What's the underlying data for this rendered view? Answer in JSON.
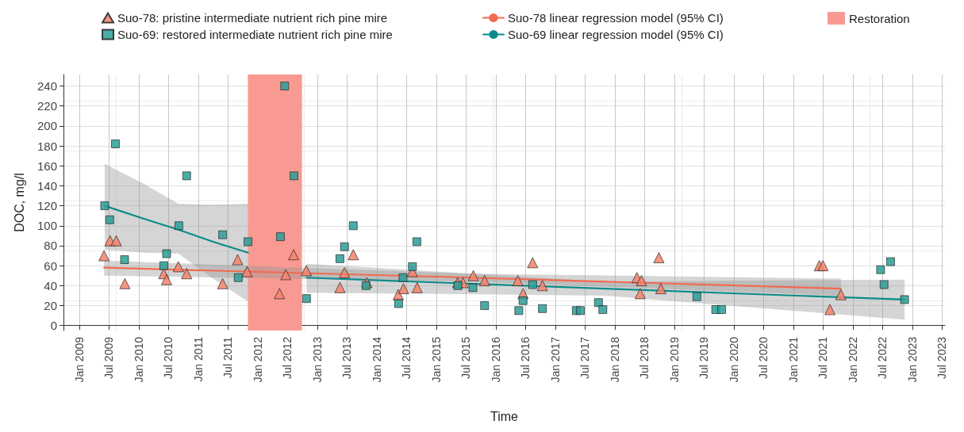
{
  "chart_data": {
    "type": "scatter",
    "xlabel": "Time",
    "ylabel": "DOC, mg/l",
    "xlim": [
      "2008-09-25",
      "2023-07-20"
    ],
    "ylim": [
      -5,
      251.5
    ],
    "yticks": [
      0,
      20,
      40,
      60,
      80,
      100,
      120,
      140,
      160,
      180,
      200,
      220,
      240
    ],
    "xticks": [
      {
        "value": "2009-01",
        "label": "Jan 2009"
      },
      {
        "value": "2009-07",
        "label": "Jul 2009"
      },
      {
        "value": "2010-01",
        "label": "Jan 2010"
      },
      {
        "value": "2010-07",
        "label": "Jul 2010"
      },
      {
        "value": "2011-01",
        "label": "Jan 2011"
      },
      {
        "value": "2011-07",
        "label": "Jul 2011"
      },
      {
        "value": "2012-01",
        "label": "Jan 2012"
      },
      {
        "value": "2012-07",
        "label": "Jul 2012"
      },
      {
        "value": "2013-01",
        "label": "Jan 2013"
      },
      {
        "value": "2013-07",
        "label": "Jul 2013"
      },
      {
        "value": "2014-01",
        "label": "Jan 2014"
      },
      {
        "value": "2014-07",
        "label": "Jul 2014"
      },
      {
        "value": "2015-01",
        "label": "Jan 2015"
      },
      {
        "value": "2015-07",
        "label": "Jul 2015"
      },
      {
        "value": "2016-01",
        "label": "Jan 2016"
      },
      {
        "value": "2016-07",
        "label": "Jul 2016"
      },
      {
        "value": "2017-01",
        "label": "Jan 2017"
      },
      {
        "value": "2017-07",
        "label": "Jul 2017"
      },
      {
        "value": "2018-01",
        "label": "Jan 2018"
      },
      {
        "value": "2018-07",
        "label": "Jul 2018"
      },
      {
        "value": "2019-01",
        "label": "Jan 2019"
      },
      {
        "value": "2019-07",
        "label": "Jul 2019"
      },
      {
        "value": "2020-01",
        "label": "Jan 2020"
      },
      {
        "value": "2020-07",
        "label": "Jul 2020"
      },
      {
        "value": "2021-01",
        "label": "Jan 2021"
      },
      {
        "value": "2021-07",
        "label": "Jul 2021"
      },
      {
        "value": "2022-01",
        "label": "Jan 2022"
      },
      {
        "value": "2022-07",
        "label": "Jul 2022"
      },
      {
        "value": "2023-01",
        "label": "Jan 2023"
      },
      {
        "value": "2023-07",
        "label": "Jul 2023"
      }
    ],
    "grid": true,
    "legend": "top",
    "bands": [
      {
        "axis": "x",
        "from": "2011-11-01",
        "to": "2012-09-28",
        "label": "Restoration",
        "color": "#f99a92"
      }
    ],
    "series": [
      {
        "name": "Suo-78: pristine intermediate nutrient rich pine mire",
        "marker": "triangle",
        "color": "#f4836b",
        "x": [
          "2009-06-01",
          "2009-07-08",
          "2009-08-15",
          "2009-10-07",
          "2010-06-03",
          "2010-06-20",
          "2010-08-31",
          "2010-10-21",
          "2011-05-30",
          "2011-08-30",
          "2011-10-27",
          "2012-05-13",
          "2012-06-21",
          "2012-08-08",
          "2012-10-25",
          "2013-05-19",
          "2013-06-16",
          "2013-08-09",
          "2013-11-01",
          "2014-05-12",
          "2014-06-13",
          "2014-08-07",
          "2014-09-05",
          "2015-05-12",
          "2015-06-13",
          "2015-08-16",
          "2015-10-24",
          "2016-05-15",
          "2016-06-16",
          "2016-08-14",
          "2016-10-13",
          "2018-05-16",
          "2018-06-05",
          "2018-06-13",
          "2018-09-28",
          "2018-10-10",
          "2021-06-09",
          "2021-07-01",
          "2021-08-13",
          "2021-10-19"
        ],
        "values": [
          70,
          85,
          85,
          42,
          52,
          46,
          59,
          52,
          42,
          66,
          54,
          32,
          51,
          71,
          55,
          38,
          53,
          71,
          43,
          31,
          37,
          54,
          38,
          43,
          43,
          50,
          45,
          45,
          32,
          63,
          40,
          48,
          32,
          45,
          68,
          37,
          60,
          60,
          16,
          31
        ]
      },
      {
        "name": "Suo-69: restored intermediate nutrient rich pine mire",
        "marker": "square",
        "color": "#2a9d98",
        "x": [
          "2009-06-05",
          "2009-07-06",
          "2009-08-10",
          "2009-10-05",
          "2010-06-03",
          "2010-06-20",
          "2010-09-03",
          "2010-10-21",
          "2011-05-30",
          "2011-09-03",
          "2011-11-02",
          "2012-05-19",
          "2012-06-14",
          "2012-08-10",
          "2012-10-26",
          "2013-05-19",
          "2013-06-16",
          "2013-08-09",
          "2013-10-26",
          "2014-05-14",
          "2014-06-10",
          "2014-08-07",
          "2014-09-03",
          "2015-05-13",
          "2015-08-13",
          "2015-10-24",
          "2016-05-21",
          "2016-06-16",
          "2016-08-14",
          "2016-10-13",
          "2017-05-09",
          "2017-06-03",
          "2017-09-22",
          "2017-10-19",
          "2019-05-19",
          "2019-09-12",
          "2019-10-18",
          "2022-06-20",
          "2022-07-11",
          "2022-08-20",
          "2022-11-14"
        ],
        "values": [
          120,
          106,
          182,
          66,
          60,
          72,
          100,
          150,
          91,
          48,
          84,
          89,
          240,
          150,
          27,
          67,
          79,
          100,
          40,
          22,
          48,
          59,
          84,
          40,
          38,
          20,
          15,
          25,
          41,
          17,
          15,
          15,
          23,
          16,
          29,
          16,
          16,
          56,
          41,
          64,
          26
        ]
      },
      {
        "name": "Suo-78 linear regression model (95% CI)",
        "type": "line",
        "marker": "none",
        "color": "#f26a4f",
        "x": [
          "2009-06-01",
          "2015-08-01",
          "2021-10-19"
        ],
        "values": [
          58,
          48,
          37
        ],
        "lower": [
          50,
          44,
          30
        ],
        "upper": [
          65,
          52,
          47
        ]
      },
      {
        "name": "Suo-69 linear regression model (95% CI)",
        "type": "line",
        "marker": "none",
        "color": "#0a8c8a",
        "x": [
          "2009-06-05",
          "2010-02-01",
          "2010-09-01",
          "2011-04-01",
          "2011-11-02"
        ],
        "values": [
          120,
          107,
          96,
          84,
          73
        ],
        "lower": [
          76,
          73,
          72,
          47,
          24
        ],
        "upper": [
          162,
          142,
          122,
          121,
          122
        ]
      },
      {
        "type": "line",
        "marker": "none",
        "color": "#0a8c8a",
        "x": [
          "2012-10-26",
          "2017-11-01",
          "2022-11-14"
        ],
        "values": [
          48,
          37,
          26
        ],
        "lower": [
          33,
          30,
          6
        ],
        "upper": [
          62,
          44,
          46
        ]
      }
    ]
  }
}
